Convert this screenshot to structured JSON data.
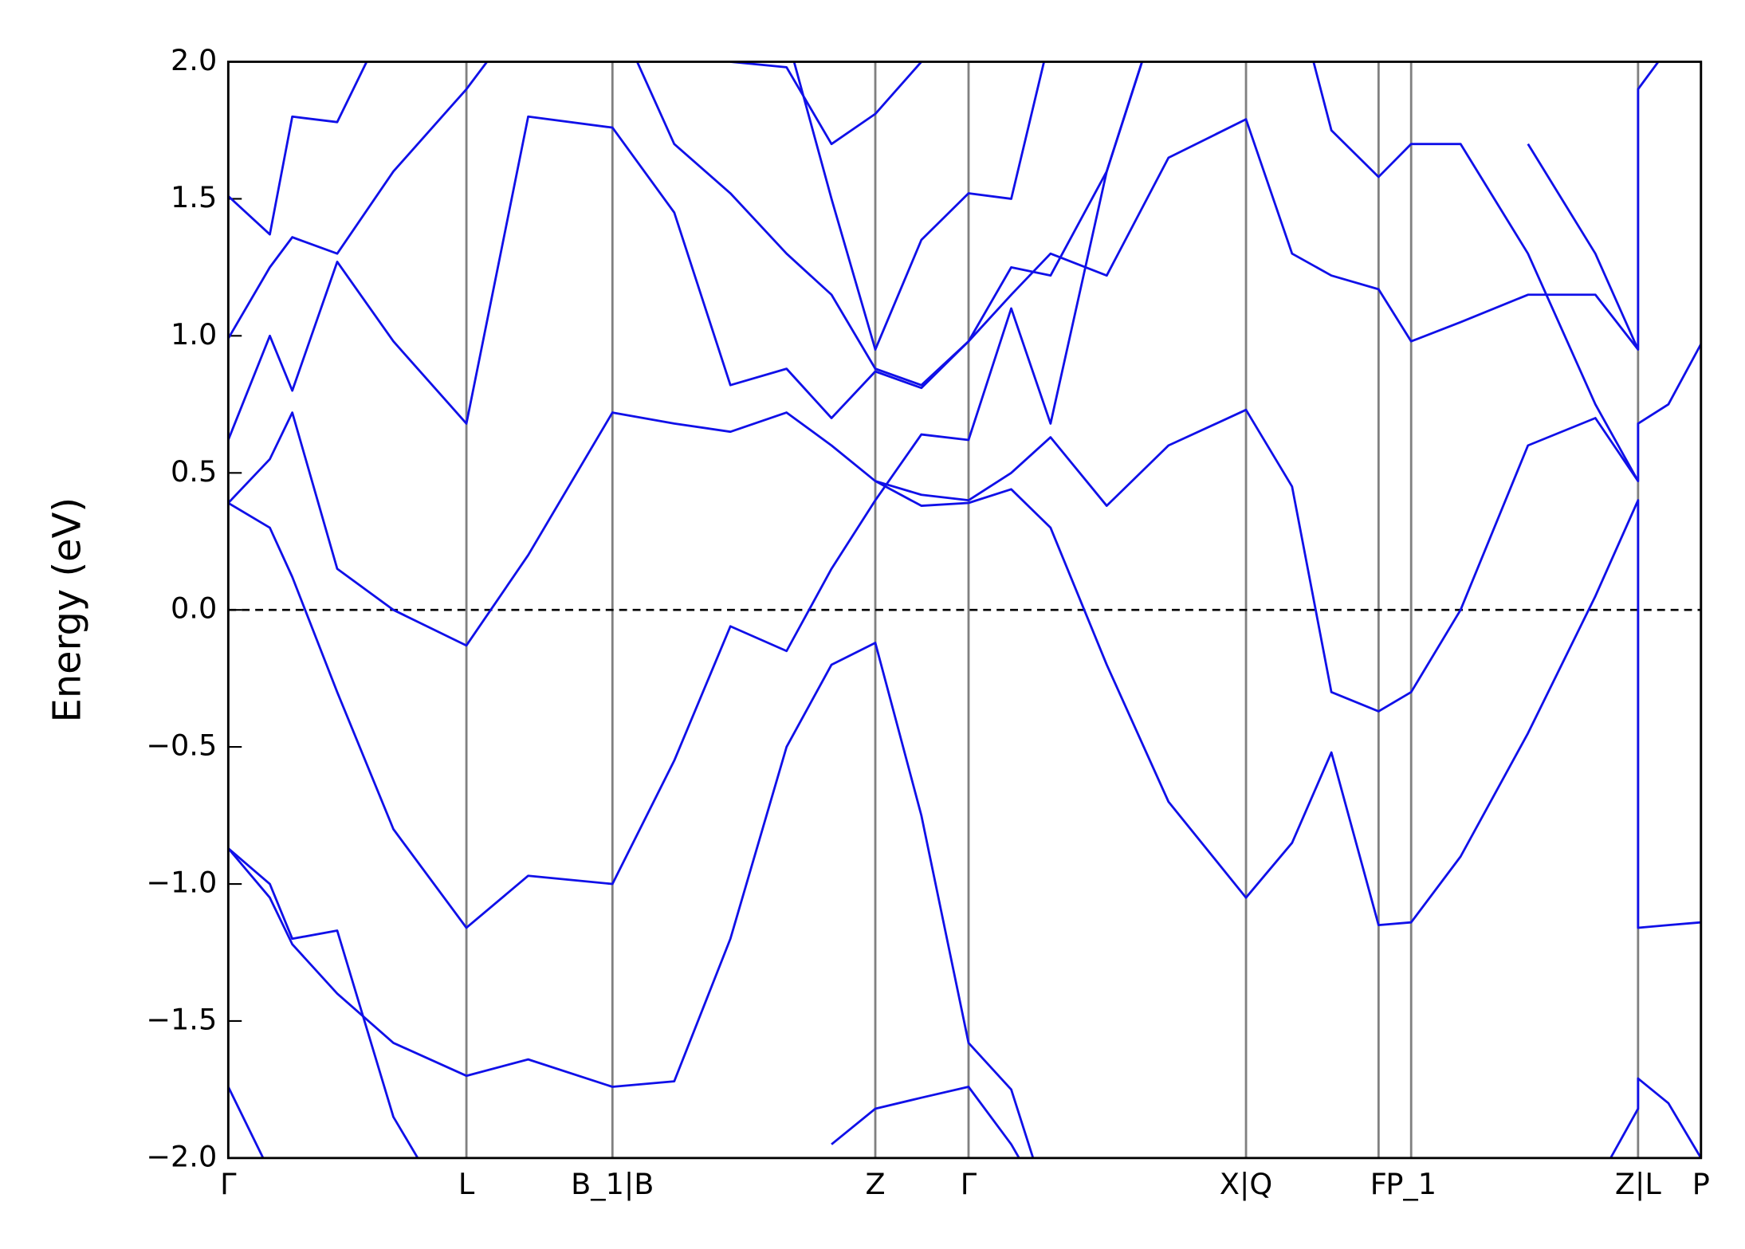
{
  "chart_data": {
    "type": "line",
    "y_label": "Energy (eV)",
    "xlim": [
      0,
      6.555
    ],
    "ylim": [
      -2.0,
      2.0
    ],
    "xticks": [
      {
        "value": 0,
        "label": "Γ"
      },
      {
        "value": 1.06,
        "label": "L"
      },
      {
        "value": 1.71,
        "label": "B_1|B"
      },
      {
        "value": 2.88,
        "label": "Z"
      },
      {
        "value": 3.295,
        "label": "Γ"
      },
      {
        "value": 4.53,
        "label": "X|Q"
      },
      {
        "value": 5.12,
        "label": "F"
      },
      {
        "value": 5.265,
        "label": "P_1"
      },
      {
        "value": 6.275,
        "label": "Z|L"
      },
      {
        "value": 6.555,
        "label": "P"
      }
    ],
    "yticks": [
      {
        "value": -2.0,
        "label": "−2.0"
      },
      {
        "value": -1.5,
        "label": "−1.5"
      },
      {
        "value": -1.0,
        "label": "−1.0"
      },
      {
        "value": -0.5,
        "label": "−0.5"
      },
      {
        "value": 0.0,
        "label": "0.0"
      },
      {
        "value": 0.5,
        "label": "0.5"
      },
      {
        "value": 1.0,
        "label": "1.0"
      },
      {
        "value": 1.5,
        "label": "1.5"
      },
      {
        "value": 2.0,
        "label": "2.0"
      }
    ],
    "xgrid": true,
    "grid_color": "#808080",
    "hline": 0,
    "x": [
      0,
      0.185,
      0.285,
      0.485,
      0.735,
      1.06,
      1.335,
      1.71,
      1.985,
      2.235,
      2.485,
      2.685,
      2.88,
      3.085,
      3.295,
      3.485,
      3.66,
      3.91,
      4.185,
      4.53,
      4.735,
      4.91,
      5.12,
      5.265,
      5.485,
      5.785,
      6.085,
      6.275,
      6.275,
      6.41,
      6.555
    ],
    "series": [
      {
        "color": "#1010e8",
        "values": [
          -1.74,
          -2.05,
          null,
          null,
          null,
          null,
          null,
          null,
          null,
          null,
          null,
          -1.95,
          -1.82,
          -1.78,
          -1.74,
          -1.95,
          -2.2,
          null,
          null,
          null,
          null,
          null,
          null,
          null,
          null,
          null,
          -2.1,
          -1.82,
          -1.71,
          -1.8,
          -2.0
        ]
      },
      {
        "color": "#1010e8",
        "values": [
          -0.87,
          -1.05,
          -1.22,
          -1.4,
          -1.58,
          -1.7,
          -1.64,
          -1.74,
          -1.72,
          -1.2,
          -0.5,
          -0.2,
          -0.12,
          -0.75,
          -1.58,
          -1.75,
          -2.2,
          null,
          null,
          null,
          null,
          null,
          null,
          null,
          null,
          null,
          null,
          null,
          null,
          null,
          null
        ]
      },
      {
        "color": "#1010e8",
        "values": [
          -0.87,
          -1.0,
          -1.2,
          -1.17,
          -1.85,
          -2.3,
          null,
          null,
          null,
          null,
          null,
          null,
          null,
          null,
          null,
          null,
          null,
          null,
          null,
          null,
          null,
          null,
          null,
          null,
          null,
          null,
          null,
          null,
          null,
          null,
          null
        ]
      },
      {
        "color": "#1010e8",
        "values": [
          0.39,
          0.3,
          0.12,
          -0.3,
          -0.8,
          -1.16,
          -0.97,
          -1.0,
          -0.55,
          -0.06,
          -0.15,
          0.15,
          0.4,
          0.64,
          0.62,
          1.1,
          0.68,
          1.6,
          2.3,
          null,
          null,
          null,
          null,
          null,
          null,
          null,
          null,
          null,
          null,
          null,
          null
        ]
      },
      {
        "color": "#1010e8",
        "values": [
          0.39,
          0.55,
          0.72,
          0.15,
          0.0,
          -0.13,
          0.2,
          0.72,
          0.68,
          0.65,
          0.72,
          0.6,
          0.47,
          0.38,
          0.39,
          0.44,
          0.3,
          -0.2,
          -0.7,
          -1.05,
          -0.85,
          -0.52,
          -1.15,
          -1.14,
          -0.9,
          -0.45,
          0.05,
          0.4,
          -1.16,
          -1.15,
          -1.14
        ]
      },
      {
        "color": "#1010e8",
        "values": [
          0.62,
          1.0,
          0.8,
          1.27,
          0.98,
          0.68,
          1.8,
          1.76,
          1.45,
          0.82,
          0.88,
          0.7,
          0.87,
          0.81,
          0.98,
          1.25,
          1.22,
          1.6,
          2.3,
          null,
          null,
          null,
          null,
          null,
          null,
          null,
          null,
          null,
          null,
          null,
          null
        ]
      },
      {
        "color": "#1010e8",
        "values": [
          null,
          null,
          null,
          null,
          null,
          null,
          null,
          null,
          null,
          null,
          null,
          null,
          0.47,
          0.42,
          0.4,
          0.5,
          0.63,
          0.38,
          0.6,
          0.73,
          0.45,
          -0.3,
          -0.37,
          -0.3,
          0.0,
          0.6,
          0.7,
          0.47,
          0.68,
          0.75,
          0.97
        ]
      },
      {
        "color": "#1010e8",
        "values": [
          0.99,
          1.25,
          1.36,
          1.3,
          1.6,
          1.9,
          2.2,
          null,
          null,
          null,
          2.1,
          1.5,
          0.95,
          1.35,
          1.52,
          1.5,
          2.1,
          null,
          null,
          null,
          null,
          null,
          null,
          null,
          null,
          1.7,
          1.3,
          0.95,
          1.9,
          2.05,
          null
        ]
      },
      {
        "color": "#1010e8",
        "values": [
          1.51,
          1.37,
          1.8,
          1.78,
          2.2,
          null,
          null,
          null,
          null,
          null,
          null,
          null,
          null,
          null,
          null,
          null,
          null,
          null,
          null,
          null,
          null,
          null,
          null,
          null,
          null,
          null,
          null,
          null,
          null,
          null,
          null
        ]
      },
      {
        "color": "#1010e8",
        "values": [
          null,
          null,
          null,
          null,
          null,
          null,
          null,
          2.2,
          1.7,
          1.52,
          1.3,
          1.15,
          0.88,
          0.82,
          0.98,
          1.15,
          1.3,
          1.22,
          1.65,
          1.79,
          1.3,
          1.22,
          1.17,
          0.98,
          1.05,
          1.15,
          1.15,
          0.95,
          null,
          null,
          null
        ]
      },
      {
        "color": "#1010e8",
        "values": [
          null,
          null,
          null,
          null,
          null,
          null,
          null,
          null,
          null,
          null,
          null,
          null,
          null,
          null,
          null,
          null,
          null,
          null,
          null,
          null,
          2.3,
          1.75,
          1.58,
          1.7,
          1.7,
          1.3,
          0.75,
          0.47,
          null,
          null,
          null
        ]
      },
      {
        "color": "#1010e8",
        "values": [
          null,
          null,
          null,
          null,
          null,
          null,
          null,
          null,
          null,
          2.0,
          1.98,
          1.7,
          1.81,
          2.0,
          null,
          null,
          null,
          null,
          null,
          null,
          null,
          null,
          null,
          null,
          null,
          null,
          null,
          null,
          null,
          null,
          null
        ]
      }
    ]
  }
}
